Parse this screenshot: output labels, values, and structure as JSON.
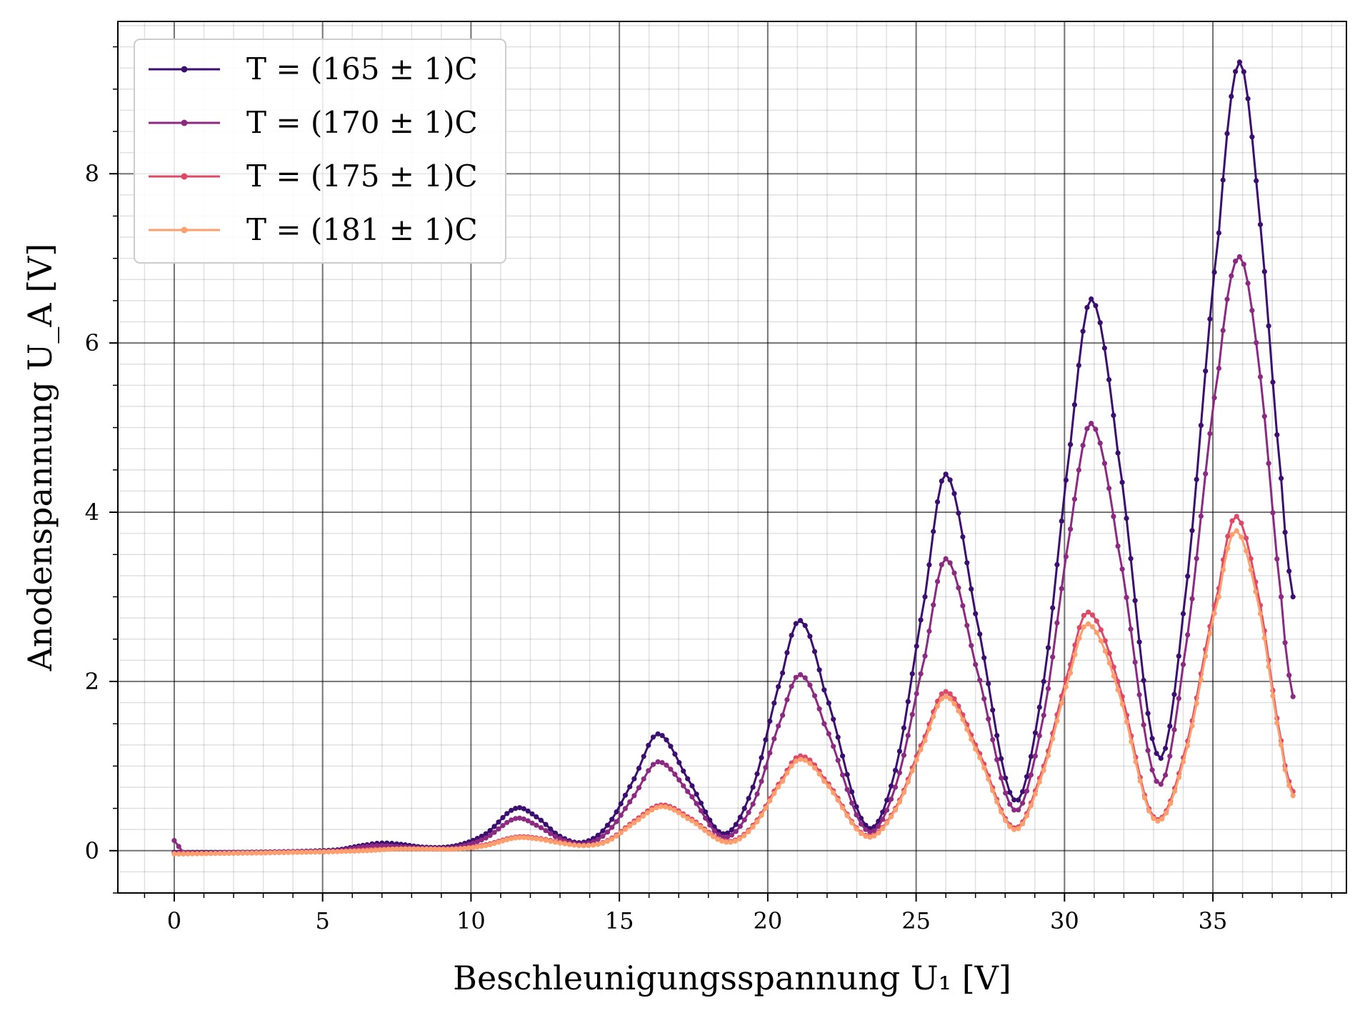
{
  "chart_data": {
    "type": "line",
    "xlabel": "Beschleunigungsspannung U₁ [V]",
    "ylabel": "Anodenspannung U_A [V]",
    "xlim": [
      -1.9,
      39.5
    ],
    "ylim": [
      -0.5,
      9.8
    ],
    "xticks": [
      0,
      5,
      10,
      15,
      20,
      25,
      30,
      35
    ],
    "yticks": [
      0,
      2,
      4,
      6,
      8
    ],
    "grid": "major and minor",
    "legend_position": "top-left",
    "series": [
      {
        "name": "T = (165 ± 1)C",
        "color": "#3b0f70",
        "points": [
          [
            0,
            -0.02
          ],
          [
            2,
            -0.02
          ],
          [
            4,
            -0.01
          ],
          [
            5.5,
            0.01
          ],
          [
            6.5,
            0.07
          ],
          [
            7,
            0.09
          ],
          [
            7.5,
            0.08
          ],
          [
            8.5,
            0.04
          ],
          [
            9.5,
            0.06
          ],
          [
            10.5,
            0.2
          ],
          [
            11.5,
            0.5
          ],
          [
            12.2,
            0.4
          ],
          [
            13,
            0.17
          ],
          [
            13.8,
            0.1
          ],
          [
            14.6,
            0.3
          ],
          [
            15.5,
            0.85
          ],
          [
            16.3,
            1.38
          ],
          [
            17.3,
            0.85
          ],
          [
            18.5,
            0.2
          ],
          [
            19.5,
            0.75
          ],
          [
            20.5,
            2.1
          ],
          [
            21.1,
            2.72
          ],
          [
            21.9,
            1.9
          ],
          [
            23.3,
            0.3
          ],
          [
            24.3,
            0.95
          ],
          [
            25.3,
            3.0
          ],
          [
            26.0,
            4.45
          ],
          [
            27.0,
            2.8
          ],
          [
            28.3,
            0.6
          ],
          [
            29.3,
            2.0
          ],
          [
            30.2,
            4.8
          ],
          [
            30.9,
            6.52
          ],
          [
            31.8,
            4.7
          ],
          [
            33.1,
            1.15
          ],
          [
            34.0,
            2.8
          ],
          [
            35.2,
            7.3
          ],
          [
            35.9,
            9.32
          ],
          [
            36.6,
            7.4
          ],
          [
            37.3,
            4.4
          ],
          [
            37.7,
            3.0
          ]
        ]
      },
      {
        "name": "T = (170 ± 1)C",
        "color": "#8c2981",
        "points": [
          [
            0,
            0.12
          ],
          [
            0.3,
            -0.02
          ],
          [
            2,
            -0.02
          ],
          [
            4,
            -0.01
          ],
          [
            5.5,
            0.0
          ],
          [
            6.5,
            0.05
          ],
          [
            7,
            0.06
          ],
          [
            7.5,
            0.05
          ],
          [
            8.5,
            0.03
          ],
          [
            9.5,
            0.04
          ],
          [
            10.5,
            0.15
          ],
          [
            11.5,
            0.38
          ],
          [
            12.2,
            0.3
          ],
          [
            13,
            0.14
          ],
          [
            13.8,
            0.08
          ],
          [
            14.6,
            0.22
          ],
          [
            15.5,
            0.65
          ],
          [
            16.3,
            1.05
          ],
          [
            17.3,
            0.7
          ],
          [
            18.5,
            0.16
          ],
          [
            19.5,
            0.55
          ],
          [
            20.5,
            1.6
          ],
          [
            21.1,
            2.08
          ],
          [
            21.9,
            1.5
          ],
          [
            23.3,
            0.25
          ],
          [
            24.3,
            0.75
          ],
          [
            25.3,
            2.3
          ],
          [
            26.0,
            3.45
          ],
          [
            27.0,
            2.2
          ],
          [
            28.3,
            0.48
          ],
          [
            29.3,
            1.6
          ],
          [
            30.2,
            3.8
          ],
          [
            30.9,
            5.05
          ],
          [
            31.8,
            3.6
          ],
          [
            33.1,
            0.82
          ],
          [
            34.0,
            2.2
          ],
          [
            35.2,
            5.7
          ],
          [
            35.9,
            7.02
          ],
          [
            36.6,
            5.6
          ],
          [
            37.3,
            3.0
          ],
          [
            37.7,
            1.82
          ]
        ]
      },
      {
        "name": "T = (175 ± 1)C",
        "color": "#de4968",
        "points": [
          [
            0,
            -0.03
          ],
          [
            2,
            -0.03
          ],
          [
            4,
            -0.02
          ],
          [
            5.5,
            -0.01
          ],
          [
            6.5,
            0.01
          ],
          [
            7.5,
            0.02
          ],
          [
            8.5,
            0.02
          ],
          [
            9.5,
            0.02
          ],
          [
            10.5,
            0.07
          ],
          [
            11.5,
            0.16
          ],
          [
            12.2,
            0.15
          ],
          [
            13,
            0.1
          ],
          [
            13.8,
            0.06
          ],
          [
            14.6,
            0.12
          ],
          [
            15.5,
            0.35
          ],
          [
            16.4,
            0.54
          ],
          [
            17.3,
            0.4
          ],
          [
            18.6,
            0.11
          ],
          [
            19.5,
            0.3
          ],
          [
            20.5,
            0.85
          ],
          [
            21.1,
            1.12
          ],
          [
            21.9,
            0.85
          ],
          [
            23.3,
            0.18
          ],
          [
            24.3,
            0.5
          ],
          [
            25.3,
            1.35
          ],
          [
            26.0,
            1.88
          ],
          [
            27.0,
            1.25
          ],
          [
            28.3,
            0.27
          ],
          [
            29.3,
            1.0
          ],
          [
            30.2,
            2.2
          ],
          [
            30.8,
            2.82
          ],
          [
            31.8,
            2.0
          ],
          [
            33.0,
            0.4
          ],
          [
            34.0,
            1.1
          ],
          [
            35.2,
            3.1
          ],
          [
            35.8,
            3.95
          ],
          [
            36.6,
            2.9
          ],
          [
            37.3,
            1.3
          ],
          [
            37.7,
            0.7
          ]
        ]
      },
      {
        "name": "T = (181 ± 1)C",
        "color": "#fe9f6d",
        "points": [
          [
            0,
            -0.04
          ],
          [
            2,
            -0.03
          ],
          [
            4,
            -0.02
          ],
          [
            5.5,
            -0.01
          ],
          [
            6.5,
            0.0
          ],
          [
            7.5,
            0.02
          ],
          [
            8.5,
            0.02
          ],
          [
            9.5,
            0.02
          ],
          [
            10.5,
            0.06
          ],
          [
            11.5,
            0.15
          ],
          [
            12.2,
            0.14
          ],
          [
            13,
            0.09
          ],
          [
            13.8,
            0.06
          ],
          [
            14.6,
            0.11
          ],
          [
            15.5,
            0.33
          ],
          [
            16.4,
            0.52
          ],
          [
            17.3,
            0.38
          ],
          [
            18.6,
            0.1
          ],
          [
            19.5,
            0.28
          ],
          [
            20.5,
            0.82
          ],
          [
            21.1,
            1.08
          ],
          [
            21.9,
            0.82
          ],
          [
            23.3,
            0.17
          ],
          [
            24.3,
            0.48
          ],
          [
            25.3,
            1.3
          ],
          [
            26.0,
            1.82
          ],
          [
            27.0,
            1.2
          ],
          [
            28.3,
            0.25
          ],
          [
            29.3,
            0.95
          ],
          [
            30.2,
            2.1
          ],
          [
            30.8,
            2.68
          ],
          [
            31.8,
            1.9
          ],
          [
            33.0,
            0.38
          ],
          [
            34.0,
            1.05
          ],
          [
            35.2,
            3.0
          ],
          [
            35.8,
            3.78
          ],
          [
            36.6,
            2.8
          ],
          [
            37.3,
            1.25
          ],
          [
            37.7,
            0.65
          ]
        ]
      }
    ]
  }
}
